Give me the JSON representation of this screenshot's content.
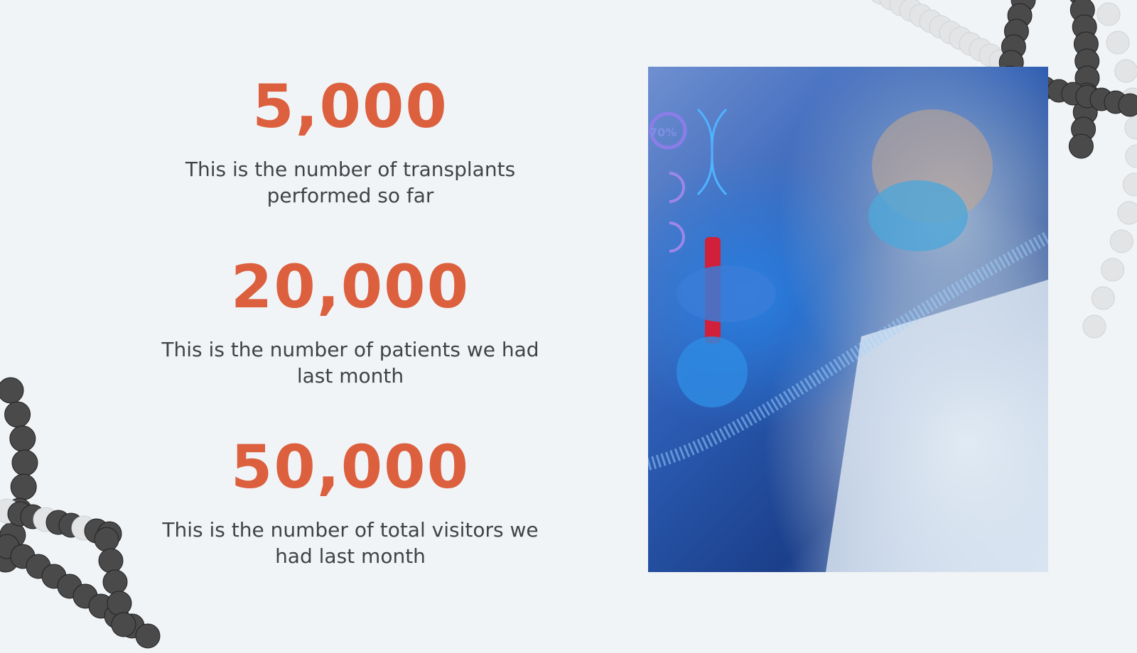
{
  "stats": [
    {
      "value": "5,000",
      "description": "This is the number of transplants performed so far"
    },
    {
      "value": "20,000",
      "description": "This is the number of patients we had last month"
    },
    {
      "value": "50,000",
      "description": "This is the number of total visitors we had last month"
    }
  ],
  "photo": {
    "overlay_text": "70%"
  },
  "colors": {
    "accent": "#dc5f3e",
    "text": "#3f4346",
    "background": "#f1f4f7"
  }
}
